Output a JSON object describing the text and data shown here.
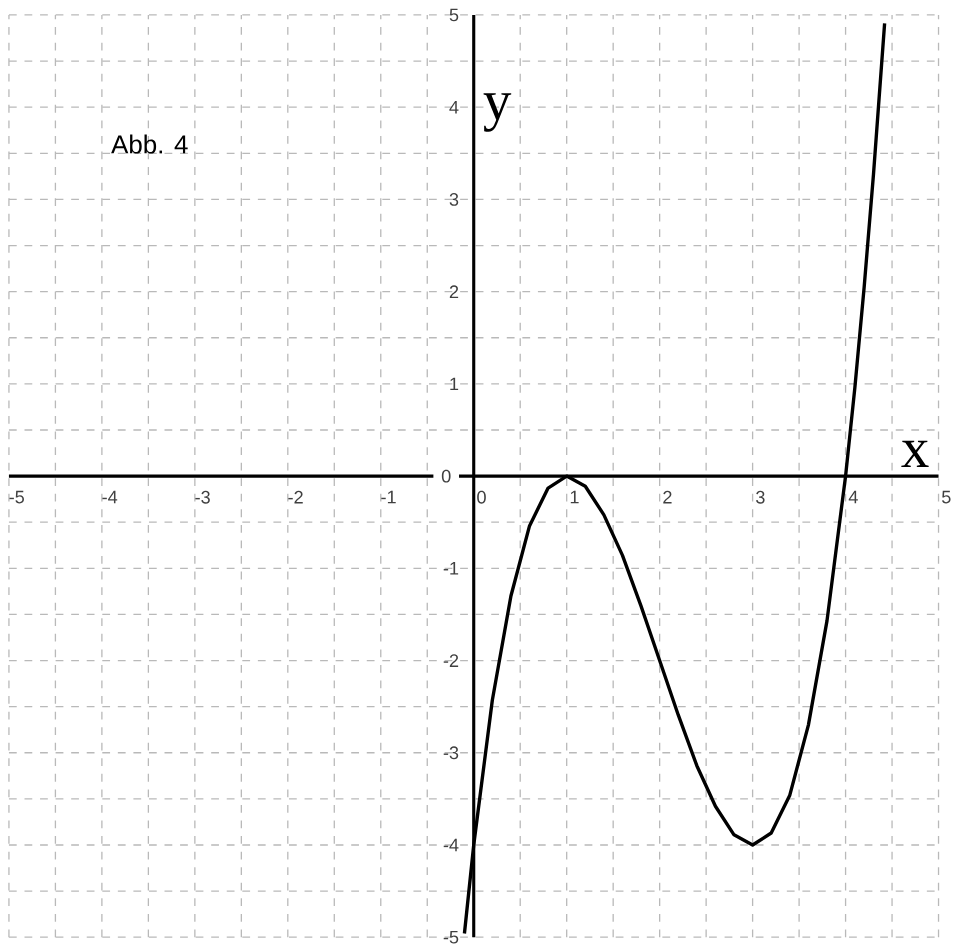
{
  "chart_data": {
    "type": "line",
    "annotations": [
      "Abb. 4"
    ],
    "xlabel": "x",
    "ylabel": "y",
    "series": [
      {
        "color": "#000000",
        "x": [
          -0.1,
          0,
          0.2,
          0.4,
          0.6,
          0.8,
          1,
          1.2,
          1.4,
          1.6,
          1.8,
          2,
          2.2,
          2.4,
          2.6,
          2.8,
          3,
          3.2,
          3.4,
          3.6,
          3.8,
          4,
          4.1,
          4.2,
          4.3,
          4.42
        ],
        "values": [
          -4.96,
          -4,
          -2.43,
          -1.3,
          -0.54,
          -0.13,
          0,
          -0.11,
          -0.42,
          -0.86,
          -1.41,
          -2,
          -2.59,
          -3.14,
          -3.58,
          -3.89,
          -4,
          -3.87,
          -3.46,
          -2.7,
          -1.57,
          0,
          0.96,
          2.05,
          3.27,
          4.91
        ]
      }
    ],
    "xlim": [
      -5,
      5
    ],
    "ylim": [
      -5,
      5
    ],
    "xticks": [
      -5,
      -4,
      -3,
      -2,
      -1,
      0,
      1,
      2,
      3,
      4,
      5
    ],
    "yticks": [
      -5,
      -4,
      -3,
      -2,
      -1,
      0,
      1,
      2,
      3,
      4,
      5
    ],
    "grid": true
  }
}
